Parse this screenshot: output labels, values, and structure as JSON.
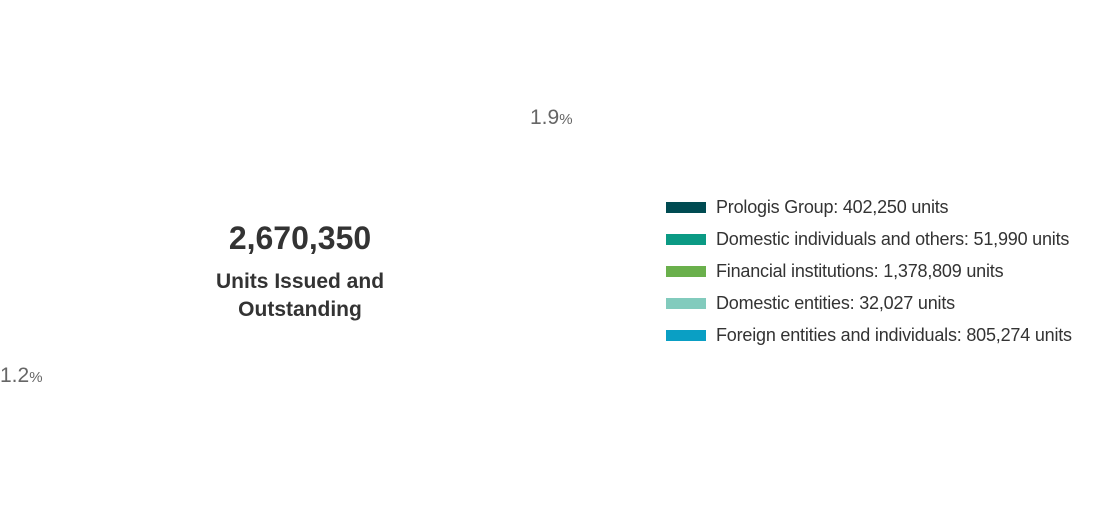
{
  "center": {
    "total": "2,670,350",
    "label": "Units Issued and Outstanding"
  },
  "slice_labels": [
    {
      "value": "1.9",
      "unit": "%"
    },
    {
      "value": "1.2",
      "unit": "%"
    }
  ],
  "legend": [
    {
      "label": "Prologis Group: 402,250 units",
      "color": "#004b52"
    },
    {
      "label": "Domestic individuals and others: 51,990 units",
      "color": "#0b9a84"
    },
    {
      "label": "Financial institutions: 1,378,809 units",
      "color": "#6ab04c"
    },
    {
      "label": "Domestic entities: 32,027 units",
      "color": "#82cbbd"
    },
    {
      "label": "Foreign entities and individuals: 805,274 units",
      "color": "#0a9fc4"
    }
  ]
}
